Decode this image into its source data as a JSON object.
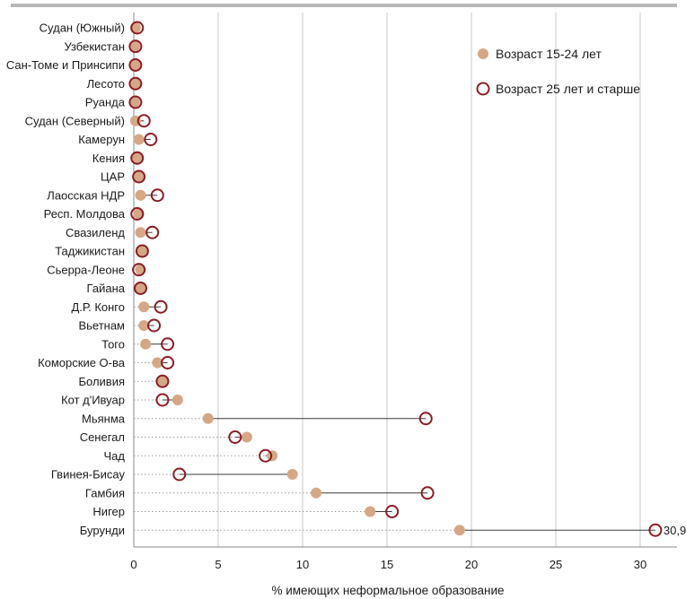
{
  "chart_data": {
    "type": "scatter",
    "xlabel": "% имеющих неформальное образование",
    "xlim": [
      0,
      31
    ],
    "xticks": [
      0,
      5,
      10,
      15,
      20,
      25,
      30
    ],
    "grid": true,
    "legend_position": "top-right",
    "categories": [
      "Судан (Южный)",
      "Узбекистан",
      "Сан-Томе и Принсипи",
      "Лесото",
      "Руанда",
      "Судан (Северный)",
      "Камерун",
      "Кения",
      "ЦАР",
      "Лаосская НДР",
      "Респ. Молдова",
      "Свазиленд",
      "Таджикистан",
      "Сьерра-Леоне",
      "Гайана",
      "Д.Р. Конго",
      "Вьетнам",
      "Того",
      "Коморские О-ва",
      "Боливия",
      "Кот д'Ивуар",
      "Мьянма",
      "Сенегал",
      "Чад",
      "Гвинея-Бисау",
      "Гамбия",
      "Нигер",
      "Бурунди"
    ],
    "series": [
      {
        "name": "Возраст 15-24 лет",
        "color": "#d4a887",
        "marker": "filled-circle",
        "values": [
          0.1,
          0.05,
          0.1,
          0.1,
          0.05,
          0.1,
          0.3,
          0.2,
          0.3,
          0.4,
          0.3,
          0.4,
          0.5,
          0.4,
          0.4,
          0.6,
          0.6,
          0.7,
          1.4,
          1.7,
          2.6,
          4.4,
          6.7,
          8.2,
          9.4,
          10.8,
          14.0,
          19.3
        ]
      },
      {
        "name": "Возраст 25 лет и старше",
        "color": "#8b1c23",
        "marker": "open-circle",
        "values": [
          0.2,
          0.1,
          0.1,
          0.1,
          0.1,
          0.6,
          1.0,
          0.2,
          0.3,
          1.4,
          0.2,
          1.1,
          0.5,
          0.3,
          0.4,
          1.6,
          1.2,
          2.0,
          2.0,
          1.7,
          1.7,
          17.3,
          6.0,
          7.8,
          2.7,
          17.4,
          15.3,
          30.9
        ]
      }
    ],
    "annotations": [
      {
        "category": "Бурунди",
        "text": "30,9"
      }
    ]
  }
}
